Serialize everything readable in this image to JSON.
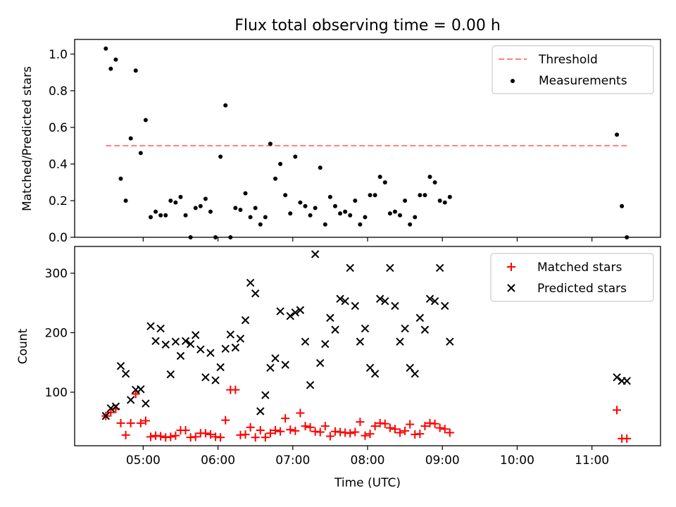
{
  "title": "Flux total observing time = 0.00 h",
  "colors": {
    "threshold": "#ff7f7f",
    "measurements": "#000000",
    "matched": "#ff0000",
    "predicted": "#000000"
  },
  "chart_data": [
    {
      "type": "scatter",
      "title": "Flux total observing time = 0.00 h",
      "ylabel": "Matched/Predicted stars",
      "xlabel": "",
      "ylim": [
        0,
        1.08
      ],
      "yticks": [
        0.0,
        0.2,
        0.4,
        0.6,
        0.8,
        1.0
      ],
      "ytick_labels": [
        "0.0",
        "0.2",
        "0.4",
        "0.6",
        "0.8",
        "1.0"
      ],
      "legend_position": "top-right",
      "threshold": {
        "name": "Threshold",
        "value": 0.5,
        "x_start": "04:30",
        "x_end": "11:30"
      },
      "series": [
        {
          "name": "Measurements",
          "x": [
            "04:30",
            "04:34",
            "04:38",
            "04:42",
            "04:46",
            "04:50",
            "04:54",
            "04:58",
            "05:02",
            "05:06",
            "05:10",
            "05:14",
            "05:18",
            "05:22",
            "05:26",
            "05:30",
            "05:34",
            "05:38",
            "05:42",
            "05:46",
            "05:50",
            "05:54",
            "05:58",
            "06:02",
            "06:06",
            "06:10",
            "06:14",
            "06:18",
            "06:22",
            "06:26",
            "06:30",
            "06:34",
            "06:38",
            "06:42",
            "06:46",
            "06:50",
            "06:54",
            "06:58",
            "07:02",
            "07:06",
            "07:10",
            "07:14",
            "07:18",
            "07:22",
            "07:26",
            "07:30",
            "07:34",
            "07:38",
            "07:42",
            "07:46",
            "07:50",
            "07:54",
            "07:58",
            "08:02",
            "08:06",
            "08:10",
            "08:14",
            "08:18",
            "08:22",
            "08:26",
            "08:30",
            "08:34",
            "08:38",
            "08:42",
            "08:46",
            "08:50",
            "08:54",
            "08:58",
            "09:02",
            "09:06",
            "11:20",
            "11:24",
            "11:28"
          ],
          "y": [
            1.03,
            0.92,
            0.97,
            0.32,
            0.2,
            0.54,
            0.91,
            0.46,
            0.64,
            0.11,
            0.14,
            0.12,
            0.12,
            0.2,
            0.19,
            0.22,
            0.12,
            0.0,
            0.16,
            0.17,
            0.21,
            0.14,
            0.0,
            0.44,
            0.72,
            0.0,
            0.16,
            0.15,
            0.24,
            0.11,
            0.16,
            0.07,
            0.11,
            0.51,
            0.32,
            0.4,
            0.23,
            0.13,
            0.44,
            0.19,
            0.17,
            0.12,
            0.16,
            0.38,
            0.07,
            0.22,
            0.17,
            0.13,
            0.14,
            0.12,
            0.2,
            0.07,
            0.11,
            0.23,
            0.23,
            0.33,
            0.3,
            0.13,
            0.14,
            0.12,
            0.2,
            0.07,
            0.11,
            0.23,
            0.23,
            0.33,
            0.3,
            0.2,
            0.19,
            0.22,
            0.56,
            0.17,
            0.0
          ]
        }
      ]
    },
    {
      "type": "scatter",
      "xlabel": "Time (UTC)",
      "ylabel": "Count",
      "ylim": [
        10,
        345
      ],
      "yticks": [
        100,
        200,
        300
      ],
      "ytick_labels": [
        "100",
        "200",
        "300"
      ],
      "x_ticks": [
        "05:00",
        "06:00",
        "07:00",
        "08:00",
        "09:00",
        "10:00",
        "11:00"
      ],
      "x_range": [
        "04:05",
        "11:55"
      ],
      "legend_position": "top-right",
      "series": [
        {
          "name": "Matched stars",
          "marker": "plus",
          "x": [
            "04:30",
            "04:34",
            "04:38",
            "04:42",
            "04:46",
            "04:50",
            "04:54",
            "04:58",
            "05:02",
            "05:06",
            "05:10",
            "05:14",
            "05:18",
            "05:22",
            "05:26",
            "05:30",
            "05:34",
            "05:38",
            "05:42",
            "05:46",
            "05:50",
            "05:54",
            "05:58",
            "06:02",
            "06:06",
            "06:10",
            "06:14",
            "06:18",
            "06:22",
            "06:26",
            "06:30",
            "06:34",
            "06:38",
            "06:42",
            "06:46",
            "06:50",
            "06:54",
            "06:58",
            "07:02",
            "07:06",
            "07:10",
            "07:14",
            "07:18",
            "07:22",
            "07:26",
            "07:30",
            "07:34",
            "07:38",
            "07:42",
            "07:46",
            "07:50",
            "07:54",
            "07:58",
            "08:02",
            "08:06",
            "08:10",
            "08:14",
            "08:18",
            "08:22",
            "08:26",
            "08:30",
            "08:34",
            "08:38",
            "08:42",
            "08:46",
            "08:50",
            "08:54",
            "08:58",
            "09:02",
            "09:06",
            "11:20",
            "11:24",
            "11:28"
          ],
          "y": [
            60,
            66,
            72,
            48,
            28,
            48,
            97,
            48,
            52,
            25,
            27,
            26,
            24,
            25,
            27,
            36,
            36,
            24,
            25,
            31,
            31,
            29,
            25,
            24,
            53,
            104,
            104,
            28,
            29,
            41,
            24,
            36,
            24,
            31,
            36,
            34,
            56,
            37,
            35,
            65,
            43,
            41,
            34,
            33,
            43,
            26,
            34,
            33,
            32,
            31,
            33,
            50,
            27,
            30,
            43,
            48,
            47,
            40,
            38,
            32,
            35,
            46,
            29,
            30,
            43,
            48,
            47,
            40,
            38,
            32,
            70,
            22,
            22
          ]
        },
        {
          "name": "Predicted stars",
          "marker": "x",
          "x": [
            "04:30",
            "04:34",
            "04:38",
            "04:42",
            "04:46",
            "04:50",
            "04:54",
            "04:58",
            "05:02",
            "05:06",
            "05:10",
            "05:14",
            "05:18",
            "05:22",
            "05:26",
            "05:30",
            "05:34",
            "05:38",
            "05:42",
            "05:46",
            "05:50",
            "05:54",
            "05:58",
            "06:02",
            "06:06",
            "06:10",
            "06:14",
            "06:18",
            "06:22",
            "06:26",
            "06:30",
            "06:34",
            "06:38",
            "06:42",
            "06:46",
            "06:50",
            "06:54",
            "06:58",
            "07:02",
            "07:06",
            "07:10",
            "07:14",
            "07:18",
            "07:22",
            "07:26",
            "07:30",
            "07:34",
            "07:38",
            "07:42",
            "07:46",
            "07:50",
            "07:54",
            "07:58",
            "08:02",
            "08:06",
            "08:10",
            "08:14",
            "08:18",
            "08:22",
            "08:26",
            "08:30",
            "08:34",
            "08:38",
            "08:42",
            "08:46",
            "08:50",
            "08:54",
            "08:58",
            "09:02",
            "09:06",
            "11:20",
            "11:24",
            "11:28"
          ],
          "y": [
            60,
            73,
            76,
            144,
            131,
            87,
            104,
            105,
            81,
            211,
            186,
            207,
            180,
            130,
            185,
            161,
            186,
            181,
            196,
            172,
            125,
            166,
            120,
            142,
            173,
            197,
            175,
            190,
            221,
            284,
            266,
            68,
            95,
            141,
            157,
            236,
            146,
            228,
            234,
            238,
            185,
            112,
            332,
            149,
            181,
            225,
            205,
            257,
            253,
            309,
            245,
            185,
            207,
            141,
            131,
            257,
            253,
            309,
            245,
            185,
            207,
            141,
            131,
            225,
            205,
            257,
            253,
            309,
            245,
            185,
            125,
            119,
            119
          ]
        }
      ]
    }
  ]
}
